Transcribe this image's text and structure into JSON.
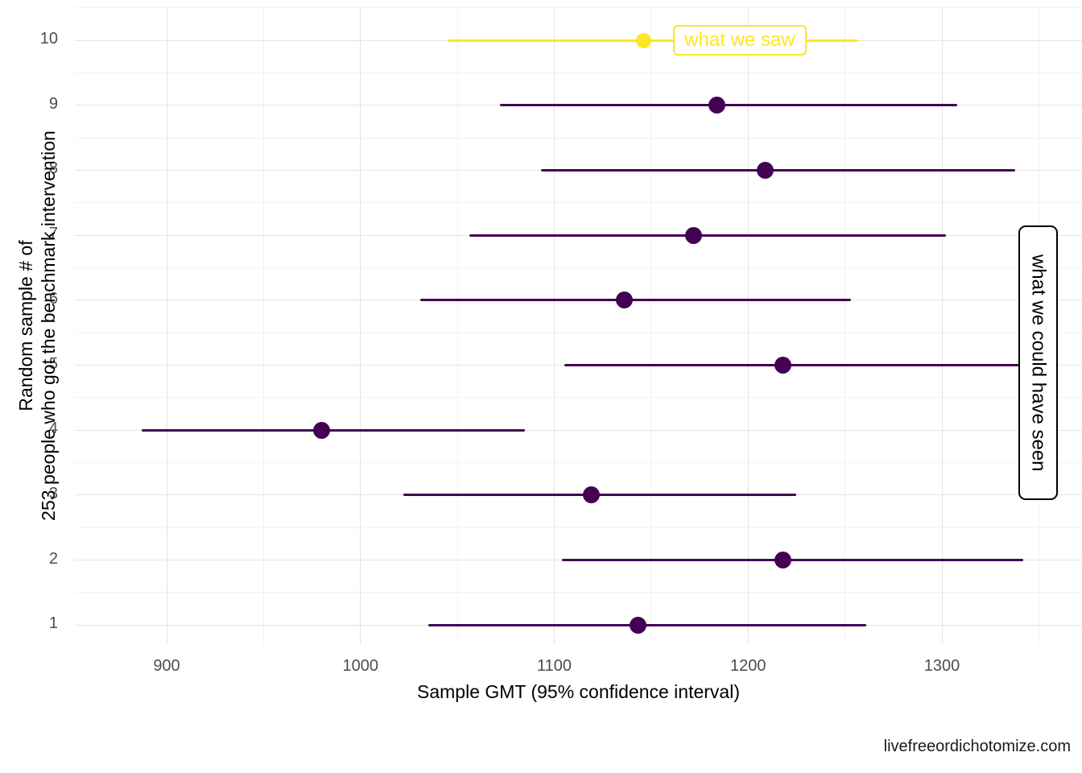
{
  "chart_data": {
    "type": "pointrange",
    "title": "",
    "xlabel": "Sample GMT (95% confidence interval)",
    "ylabel_line1": "Random sample # of",
    "ylabel_line2": "253 people who got the benchmark intervention",
    "caption": "livefreeordichotomize.com",
    "highlight_label": "what we saw",
    "annotation_right": "what we could have seen",
    "x_axis": {
      "ticks": [
        900,
        1000,
        1100,
        1200,
        1300
      ],
      "minor": [
        850,
        950,
        1050,
        1150,
        1250,
        1350
      ],
      "range": [
        853,
        1372
      ]
    },
    "y_axis": {
      "ticks": [
        1,
        2,
        3,
        4,
        5,
        6,
        7,
        8,
        9,
        10
      ],
      "range": [
        0.5,
        10.5
      ]
    },
    "series": [
      {
        "sample": 1,
        "lower": 1035,
        "estimate": 1143,
        "upper": 1261,
        "highlight": false
      },
      {
        "sample": 2,
        "lower": 1104,
        "estimate": 1218,
        "upper": 1342,
        "highlight": false
      },
      {
        "sample": 3,
        "lower": 1022,
        "estimate": 1119,
        "upper": 1225,
        "highlight": false
      },
      {
        "sample": 4,
        "lower": 887,
        "estimate": 980,
        "upper": 1085,
        "highlight": false
      },
      {
        "sample": 5,
        "lower": 1105,
        "estimate": 1218,
        "upper": 1345,
        "highlight": false
      },
      {
        "sample": 6,
        "lower": 1031,
        "estimate": 1136,
        "upper": 1253,
        "highlight": false
      },
      {
        "sample": 7,
        "lower": 1056,
        "estimate": 1172,
        "upper": 1302,
        "highlight": false
      },
      {
        "sample": 8,
        "lower": 1093,
        "estimate": 1209,
        "upper": 1338,
        "highlight": false
      },
      {
        "sample": 9,
        "lower": 1072,
        "estimate": 1184,
        "upper": 1308,
        "highlight": false
      },
      {
        "sample": 10,
        "lower": 1045,
        "estimate": 1146,
        "upper": 1257,
        "highlight": true
      }
    ],
    "legend_position": "none",
    "grid": "on",
    "colors": {
      "highlight": "#FDE725",
      "normal": "#440154",
      "grid_major": "#e4e4e4",
      "grid_minor": "#f2f2f2",
      "axis_text": "#4d4d4d",
      "title_text": "#000000",
      "background": "#ffffff"
    }
  }
}
